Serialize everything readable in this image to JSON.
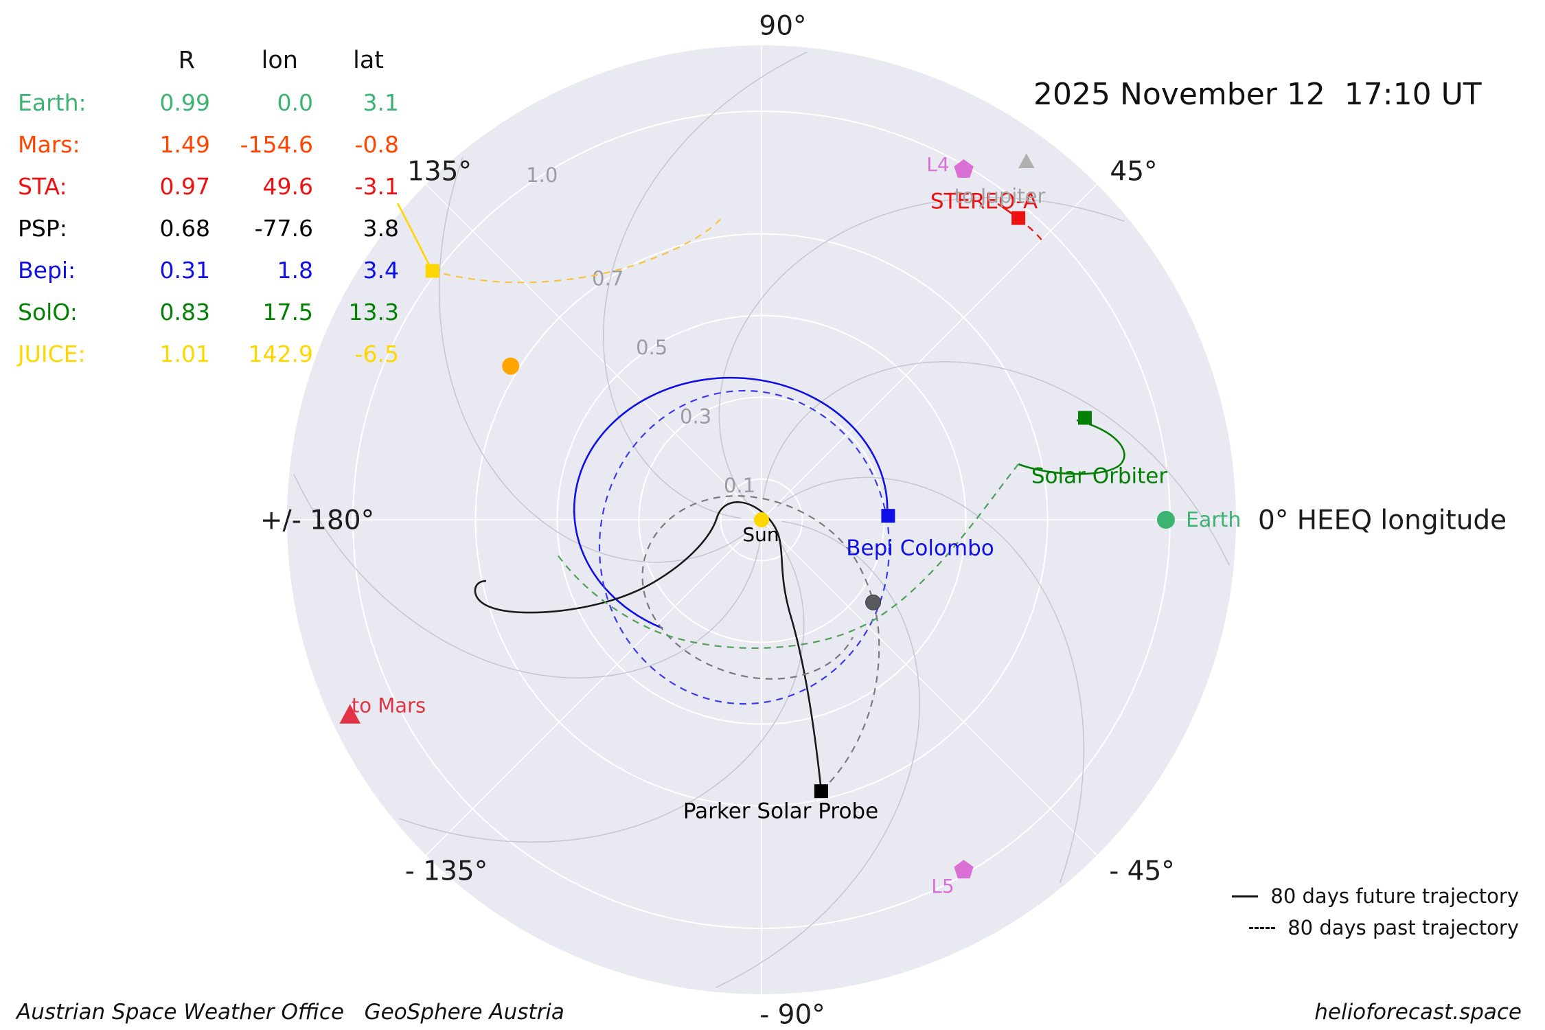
{
  "title": {
    "datetime": "2025 November 12  17:10 UT"
  },
  "ephemeris_table": {
    "columns": [
      "R",
      "lon",
      "lat"
    ],
    "rows": [
      {
        "label": "Earth:",
        "R": "0.99",
        "lon": "0.0",
        "lat": "3.1",
        "color": "#3cb371"
      },
      {
        "label": "Mars:",
        "R": "1.49",
        "lon": "-154.6",
        "lat": "-0.8",
        "color": "#ff4500"
      },
      {
        "label": "STA:",
        "R": "0.97",
        "lon": "49.6",
        "lat": "-3.1",
        "color": "#ee1111"
      },
      {
        "label": "PSP:",
        "R": "0.68",
        "lon": "-77.6",
        "lat": "3.8",
        "color": "#000000"
      },
      {
        "label": "Bepi:",
        "R": "0.31",
        "lon": "1.8",
        "lat": "3.4",
        "color": "#0f0fe8"
      },
      {
        "label": "SolO:",
        "R": "0.83",
        "lon": "17.5",
        "lat": "13.3",
        "color": "#038003"
      },
      {
        "label": "JUICE:",
        "R": "1.01",
        "lon": "142.9",
        "lat": "-6.5",
        "color": "#ffd700"
      }
    ]
  },
  "polar_axes": {
    "theta_labels": [
      "90°",
      "45°",
      "0° HEEQ longitude",
      "- 45°",
      "- 90°",
      "- 135°",
      "+/- 180°",
      "135°"
    ],
    "r_tick_labels": [
      "0.1",
      "0.3",
      "0.5",
      "0.7",
      "1.0"
    ]
  },
  "plot_labels": {
    "sun": "Sun",
    "earth": "Earth",
    "stereo_a": "STEREO-A",
    "solar_orbiter": "Solar Orbiter",
    "bepi": "Bepi Colombo",
    "psp": "Parker Solar Probe",
    "l4": "L4",
    "l5": "L5",
    "to_jupiter": "to Jupiter",
    "to_mars": "to Mars"
  },
  "legend": {
    "future": "80 days future trajectory",
    "past": "80 days past trajectory"
  },
  "footer": {
    "left": "Austrian Space Weather Office   GeoSphere Austria",
    "right": "helioforecast.space"
  },
  "chart_data": {
    "type": "scatter",
    "projection": "polar",
    "title": "2025 November 12  17:10 UT",
    "r_axis": {
      "unit": "AU",
      "ticks": [
        0.1,
        0.3,
        0.5,
        0.7,
        1.0
      ],
      "max": 1.16
    },
    "theta_axis": {
      "label": "HEEQ longitude",
      "ticks_deg": [
        90,
        45,
        0,
        -45,
        -90,
        -135,
        180,
        135
      ]
    },
    "points": [
      {
        "name": "Sun",
        "R": 0,
        "lon": 0,
        "marker": "circle",
        "color": "#ffd700",
        "size": 22
      },
      {
        "name": "Earth",
        "R": 0.99,
        "lon": 0.0,
        "lat": 3.1,
        "marker": "circle",
        "color": "#3cb371",
        "size": 26
      },
      {
        "name": "Mars direction",
        "R": 1.49,
        "lon": -154.6,
        "lat": -0.8,
        "marker": "triangle",
        "color": "#e03444",
        "size": 26,
        "clamp_R": 1.115
      },
      {
        "name": "STEREO-A",
        "R": 0.97,
        "lon": 49.6,
        "lat": -3.1,
        "marker": "square",
        "color": "#ee1111",
        "size": 20
      },
      {
        "name": "Parker Solar Probe",
        "R": 0.68,
        "lon": -77.6,
        "lat": 3.8,
        "marker": "square",
        "color": "#000000",
        "size": 20
      },
      {
        "name": "Bepi Colombo",
        "R": 0.31,
        "lon": 1.8,
        "lat": 3.4,
        "marker": "square",
        "color": "#0f0fe8",
        "size": 20
      },
      {
        "name": "Solar Orbiter",
        "R": 0.83,
        "lon": 17.5,
        "lat": 13.3,
        "marker": "square",
        "color": "#038003",
        "size": 20
      },
      {
        "name": "JUICE",
        "R": 1.01,
        "lon": 142.9,
        "lat": -6.5,
        "marker": "square",
        "color": "#ffd700",
        "size": 20
      },
      {
        "name": "L4",
        "R": 0.99,
        "lon": 60,
        "marker": "pentagon",
        "color": "#da70d6",
        "size": 24
      },
      {
        "name": "L5",
        "R": 0.99,
        "lon": -60,
        "marker": "pentagon",
        "color": "#da70d6",
        "size": 24
      },
      {
        "name": "Venus unlabeled dot",
        "R": 0.72,
        "lon": 148.5,
        "marker": "circle",
        "color": "#ffa500",
        "size": 25
      },
      {
        "name": "Mercury unlabeled dot",
        "R": 0.34,
        "lon": -36.5,
        "marker": "circle",
        "color": "#565a5e",
        "size": 22
      },
      {
        "name": "Jupiter direction",
        "R": 1.09,
        "lon": 53.5,
        "marker": "triangle",
        "color": "#b0b0b0",
        "size": 20
      }
    ],
    "trajectories": [
      {
        "id": "bepi-future",
        "object": "Bepi Colombo",
        "window": "80 days future",
        "style": "solid",
        "color": "#0f0fe8"
      },
      {
        "id": "bepi-past",
        "object": "Bepi Colombo",
        "window": "80 days past",
        "style": "dashed",
        "color": "#3a3af0"
      },
      {
        "id": "psp-future",
        "object": "Parker Solar Probe",
        "window": "80 days future",
        "style": "solid",
        "color": "#1a1a1a"
      },
      {
        "id": "psp-past",
        "object": "Parker Solar Probe",
        "window": "80 days past",
        "style": "dashed",
        "color": "#7a7a7a"
      },
      {
        "id": "solo-future",
        "object": "Solar Orbiter",
        "window": "80 days future",
        "style": "solid",
        "color": "#038003"
      },
      {
        "id": "solo-past",
        "object": "Solar Orbiter",
        "window": "80 days past",
        "style": "dashed",
        "color": "#4f9e59"
      },
      {
        "id": "juice-future",
        "object": "JUICE",
        "window": "80 days future",
        "style": "solid",
        "color": "#ffd700"
      },
      {
        "id": "juice-past",
        "object": "JUICE",
        "window": "80 days past",
        "style": "dashed",
        "color": "#f5c542"
      },
      {
        "id": "sta-future",
        "object": "STEREO-A",
        "window": "80 days future",
        "style": "solid",
        "color": "#ee1111"
      },
      {
        "id": "sta-past",
        "object": "STEREO-A",
        "window": "80 days past",
        "style": "dashed",
        "color": "#ee1111"
      }
    ],
    "legend": [
      "80 days future trajectory (solid)",
      "80 days past trajectory (dashed)"
    ]
  }
}
